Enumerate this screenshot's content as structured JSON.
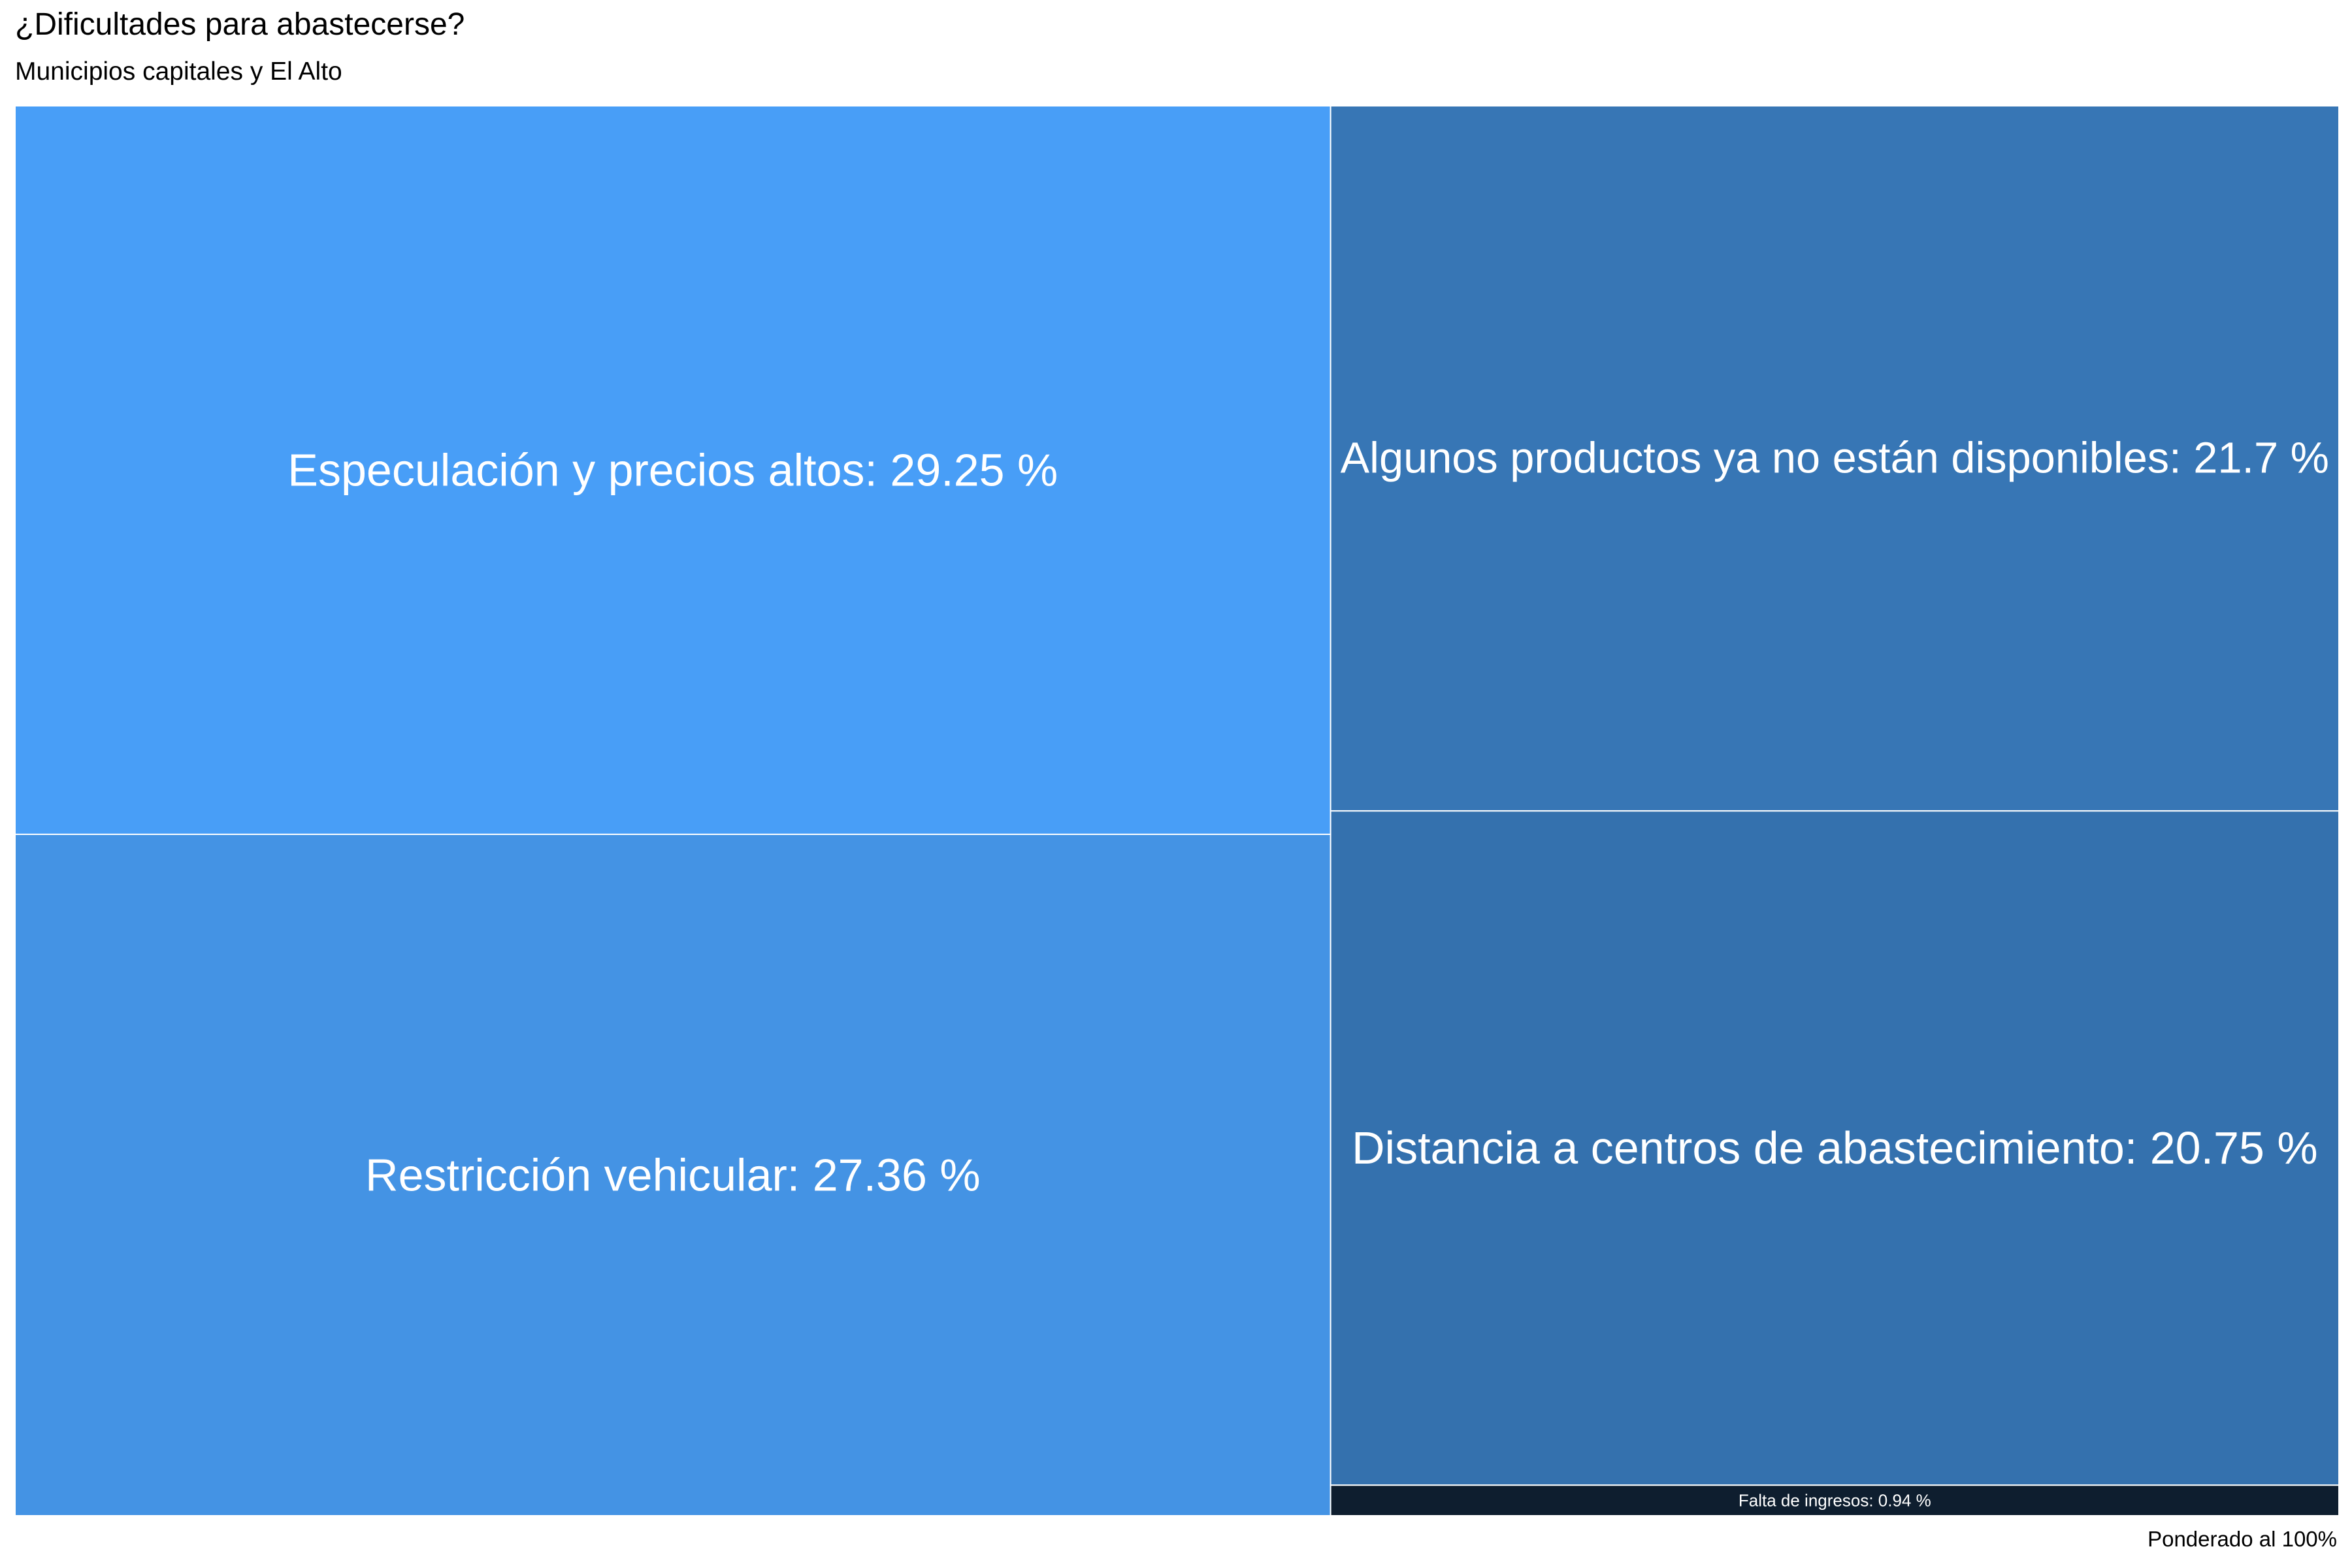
{
  "header": {
    "title": "¿Dificultades para abastecerse?",
    "subtitle": "Municipios capitales y El Alto"
  },
  "footer": {
    "caption": "Ponderado al 100%"
  },
  "chart_data": {
    "type": "treemap",
    "title": "¿Dificultades para abastecerse?",
    "subtitle": "Municipios capitales y El Alto",
    "caption": "Ponderado al 100%",
    "unit": "%",
    "items": [
      {
        "label": "Especulación y precios altos: 29.25 %",
        "name": "Especulación y precios altos",
        "value": 29.25,
        "color": "#489ef7"
      },
      {
        "label": "Restricción vehicular: 27.36 %",
        "name": "Restricción vehicular",
        "value": 27.36,
        "color": "#4493e4"
      },
      {
        "label": "Algunos productos ya no están disponibles: 21.7 %",
        "name": "Algunos productos ya no están disponibles",
        "value": 21.7,
        "color": "#3776b5"
      },
      {
        "label": "Distancia a centros de abastecimiento: 20.75 %",
        "name": "Distancia a centros de abastecimiento",
        "value": 20.75,
        "color": "#3471ae"
      },
      {
        "label": "Falta de ingresos: 0.94 %",
        "name": "Falta de ingresos",
        "value": 0.94,
        "color": "#0e1e2f"
      }
    ],
    "colors": {
      "border": "#ffffff",
      "text": "#ffffff"
    }
  }
}
